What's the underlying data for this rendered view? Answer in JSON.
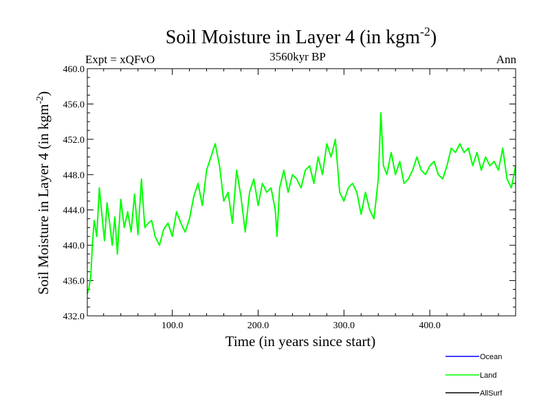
{
  "chart_data": {
    "type": "line",
    "title": "Soil Moisture in Layer 4 (in kgm",
    "title_sup": "-2",
    "title_close": ")",
    "subtitle": "3560kyr BP",
    "left_label": "Expt = xQFvO",
    "right_label": "Ann",
    "xlabel": "Time (in years since start)",
    "ylabel": "Soil Moisture in Layer 4 (in kgm",
    "ylabel_sup": "-2",
    "ylabel_close": ")",
    "xlim": [
      1,
      500
    ],
    "ylim": [
      432,
      460
    ],
    "xticks": [
      100,
      200,
      300,
      400
    ],
    "xtick_labels": [
      "100.0",
      "200.0",
      "300.0",
      "400.0"
    ],
    "yticks": [
      432,
      436,
      440,
      444,
      448,
      452,
      456,
      460
    ],
    "ytick_labels": [
      "432.0",
      "436.0",
      "440.0",
      "444.0",
      "448.0",
      "452.0",
      "456.0",
      "460.0"
    ],
    "legend": [
      {
        "name": "Ocean",
        "color": "#0000ff"
      },
      {
        "name": "Land",
        "color": "#00ff00"
      },
      {
        "name": "AllSurf",
        "color": "#000000"
      }
    ],
    "series": [
      {
        "name": "Land",
        "color": "#00ff00",
        "x": [
          1,
          3,
          5,
          7,
          9,
          12,
          15,
          18,
          21,
          24,
          27,
          30,
          33,
          36,
          40,
          44,
          48,
          52,
          56,
          60,
          64,
          68,
          72,
          76,
          80,
          85,
          90,
          95,
          100,
          105,
          110,
          115,
          120,
          125,
          130,
          135,
          140,
          145,
          150,
          155,
          160,
          165,
          170,
          175,
          180,
          185,
          190,
          195,
          200,
          205,
          210,
          215,
          220,
          222,
          225,
          230,
          235,
          240,
          245,
          250,
          255,
          260,
          265,
          270,
          275,
          280,
          285,
          290,
          295,
          300,
          305,
          310,
          315,
          320,
          325,
          330,
          335,
          340,
          343,
          346,
          350,
          355,
          360,
          365,
          370,
          375,
          380,
          385,
          390,
          395,
          400,
          405,
          410,
          415,
          420,
          425,
          430,
          435,
          440,
          445,
          450,
          455,
          460,
          465,
          470,
          475,
          480,
          485,
          490,
          495,
          500
        ],
        "values": [
          434.5,
          435.2,
          436.5,
          440.2,
          442.8,
          441.0,
          446.5,
          443.5,
          440.5,
          444.8,
          442.5,
          440.0,
          443.2,
          439.0,
          445.2,
          442.0,
          443.8,
          441.5,
          445.8,
          441.2,
          447.5,
          442.0,
          442.5,
          442.8,
          441.0,
          440.0,
          441.8,
          442.5,
          441.0,
          443.8,
          442.5,
          441.5,
          443.0,
          445.5,
          447.0,
          444.5,
          448.5,
          450.0,
          451.5,
          449.0,
          445.0,
          446.0,
          442.5,
          448.5,
          445.5,
          441.5,
          446.0,
          447.5,
          444.5,
          447.0,
          446.0,
          446.5,
          444.0,
          441.0,
          446.5,
          448.5,
          446.0,
          448.0,
          447.5,
          446.5,
          448.5,
          449.0,
          447.0,
          450.0,
          448.0,
          451.5,
          450.0,
          452.0,
          446.0,
          445.0,
          446.5,
          447.0,
          446.0,
          443.5,
          446.0,
          444.0,
          443.0,
          447.5,
          455.0,
          449.0,
          448.0,
          450.5,
          448.0,
          449.5,
          447.0,
          447.5,
          448.5,
          450.0,
          448.5,
          448.0,
          449.0,
          449.5,
          448.0,
          447.5,
          449.0,
          451.0,
          450.5,
          451.5,
          450.5,
          451.0,
          449.0,
          450.5,
          448.5,
          450.0,
          449.0,
          449.5,
          448.5,
          451.0,
          447.5,
          446.5,
          449.0
        ]
      }
    ]
  }
}
